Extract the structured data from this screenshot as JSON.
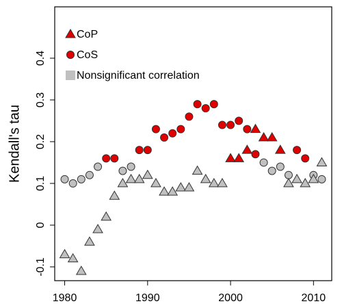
{
  "chart_data": {
    "type": "scatter",
    "y_label": "Kendall's tau",
    "xlim": [
      1978.8,
      2012.2
    ],
    "xticks": [
      1980,
      1990,
      2000,
      2010
    ],
    "ylim": [
      -0.133,
      0.523
    ],
    "yticks": [
      -0.1,
      0,
      0.1,
      0.2,
      0.3,
      0.4
    ],
    "legend": "upper left",
    "series": [
      {
        "name": "CoP",
        "color": "#e00000",
        "marker": "triangle",
        "legend_marker": "triangle",
        "x": [
          2000,
          2001,
          2002,
          2003,
          2004,
          2005,
          2006
        ],
        "values": [
          0.16,
          0.16,
          0.18,
          0.23,
          0.21,
          0.21,
          0.18
        ]
      },
      {
        "name": "CoS",
        "color": "#e00000",
        "marker": "circle",
        "legend_marker": "circle",
        "x": [
          1985,
          1986,
          1989,
          1990,
          1991,
          1992,
          1993,
          1994,
          1995,
          1996,
          1997,
          1998,
          1999,
          2000,
          2001,
          2002,
          2003,
          2008,
          2009
        ],
        "values": [
          0.16,
          0.16,
          0.18,
          0.18,
          0.23,
          0.21,
          0.22,
          0.23,
          0.26,
          0.29,
          0.28,
          0.29,
          0.24,
          0.24,
          0.25,
          0.23,
          0.17,
          0.18,
          0.16
        ]
      },
      {
        "name": "Nonsignificant correlation",
        "color": "#c0c0c0",
        "marker": "circle",
        "legend_marker": "square",
        "x": [
          1980,
          1981,
          1982,
          1983,
          1984,
          1987,
          1988,
          2004,
          2005,
          2006,
          2007,
          2010,
          2011
        ],
        "values": [
          0.11,
          0.1,
          0.11,
          0.12,
          0.14,
          0.13,
          0.14,
          0.15,
          0.13,
          0.14,
          0.12,
          0.12,
          0.11
        ]
      },
      {
        "color": "#c0c0c0",
        "marker": "triangle",
        "x": [
          1980,
          1981,
          1982,
          1983,
          1984,
          1985,
          1986,
          1987,
          1988,
          1989,
          1990,
          1991,
          1992,
          1993,
          1994,
          1995,
          1996,
          1997,
          1998,
          1999,
          2007,
          2008,
          2009,
          2010,
          2011
        ],
        "values": [
          -0.07,
          -0.08,
          -0.11,
          -0.04,
          -0.01,
          0.02,
          0.07,
          0.1,
          0.11,
          0.11,
          0.12,
          0.1,
          0.08,
          0.08,
          0.09,
          0.09,
          0.13,
          0.11,
          0.1,
          0.1,
          0.1,
          0.11,
          0.1,
          0.11,
          0.15
        ]
      }
    ]
  }
}
